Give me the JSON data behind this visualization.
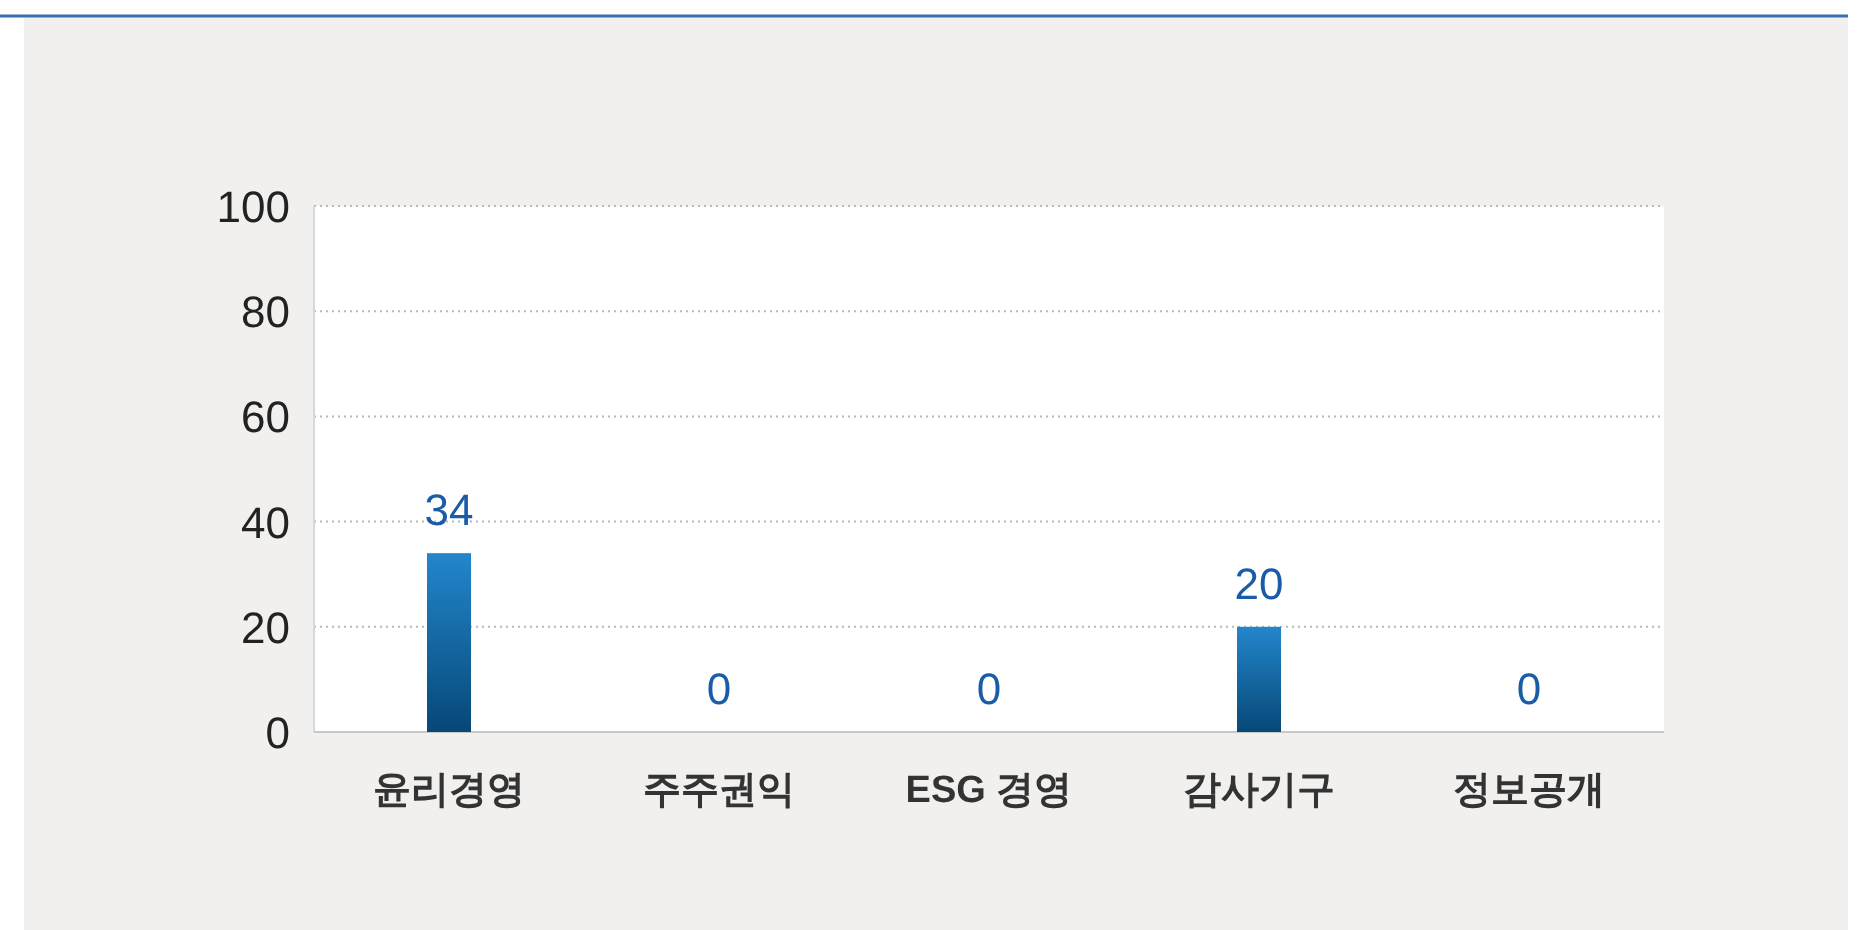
{
  "chart_data": {
    "type": "bar",
    "categories": [
      "윤리경영",
      "주주권익",
      "ESG 경영",
      "감사기구",
      "정보공개"
    ],
    "series": [
      {
        "color": "#0a78c6",
        "values": [
          34,
          0,
          0,
          20,
          0
        ]
      }
    ],
    "ylim": [
      0,
      100
    ],
    "yticks": [
      0,
      20,
      40,
      60,
      80,
      100
    ],
    "grid": "y",
    "data_labels": true
  }
}
